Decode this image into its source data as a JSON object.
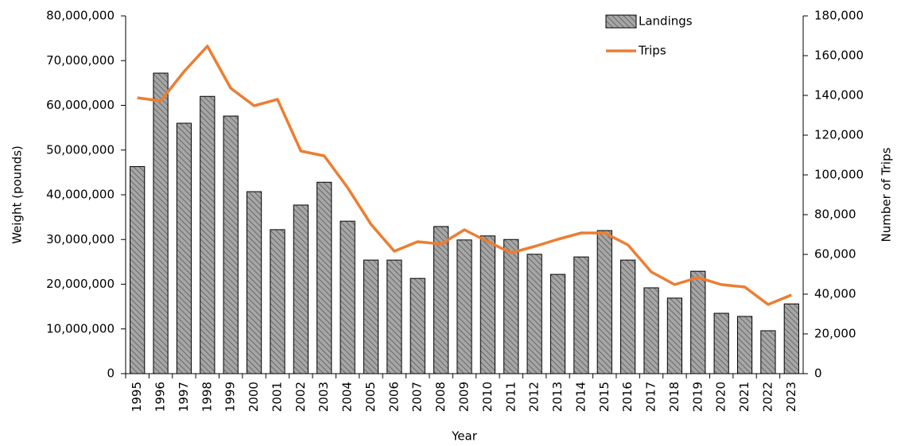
{
  "chart_data": {
    "type": "bar",
    "x_label": "Year",
    "y_label": "Weight (pounds)",
    "y2_label": "Number of Trips",
    "categories": [
      "1995",
      "1996",
      "1997",
      "1998",
      "1999",
      "2000",
      "2001",
      "2002",
      "2003",
      "2004",
      "2005",
      "2006",
      "2007",
      "2008",
      "2009",
      "2010",
      "2011",
      "2012",
      "2013",
      "2014",
      "2015",
      "2016",
      "2017",
      "2018",
      "2019",
      "2020",
      "2021",
      "2022",
      "2023"
    ],
    "series": [
      {
        "name": "Landings",
        "type": "bar",
        "color": "#a6a6a6",
        "values": [
          46300000,
          67200000,
          56000000,
          62000000,
          57600000,
          40700000,
          32200000,
          37700000,
          42800000,
          34100000,
          25400000,
          25400000,
          21300000,
          32900000,
          29900000,
          30800000,
          30000000,
          26700000,
          22200000,
          26100000,
          32000000,
          25400000,
          19200000,
          16900000,
          22900000,
          13500000,
          12800000,
          9600000,
          15600000
        ]
      },
      {
        "name": "Trips",
        "type": "line",
        "axis": "y2",
        "color": "#ed7d31",
        "values": [
          138800,
          137200,
          152000,
          164800,
          143600,
          134800,
          138000,
          112000,
          109600,
          93600,
          75200,
          61600,
          66400,
          65200,
          72400,
          66400,
          60800,
          64000,
          67600,
          70800,
          70800,
          64800,
          51200,
          44800,
          48400,
          44800,
          43600,
          34800,
          39600
        ]
      }
    ],
    "ylim": [
      0,
      80000000
    ],
    "yticks": [
      0,
      {
        "value": 10000000,
        "label": "10,000,000"
      },
      {
        "value": 20000000,
        "label": "20,000,000"
      },
      {
        "value": 30000000,
        "label": "30,000,000"
      },
      {
        "value": 40000000,
        "label": "40,000,000"
      },
      {
        "value": 50000000,
        "label": "50,000,000"
      },
      {
        "value": 60000000,
        "label": "60,000,000"
      },
      {
        "value": 70000000,
        "label": "70,000,000"
      },
      {
        "value": 80000000,
        "label": "80,000,000"
      }
    ],
    "y2lim": [
      0,
      180000
    ],
    "y2ticks": [
      0,
      {
        "value": 20000,
        "label": "20,000"
      },
      {
        "value": 40000,
        "label": "40,000"
      },
      {
        "value": 60000,
        "label": "60,000"
      },
      {
        "value": 80000,
        "label": "80,000"
      },
      {
        "value": 100000,
        "label": "100,000"
      },
      {
        "value": 120000,
        "label": "120,000"
      },
      {
        "value": 140000,
        "label": "140,000"
      },
      {
        "value": 160000,
        "label": "160,000"
      },
      {
        "value": 180000,
        "label": "180,000"
      }
    ]
  }
}
